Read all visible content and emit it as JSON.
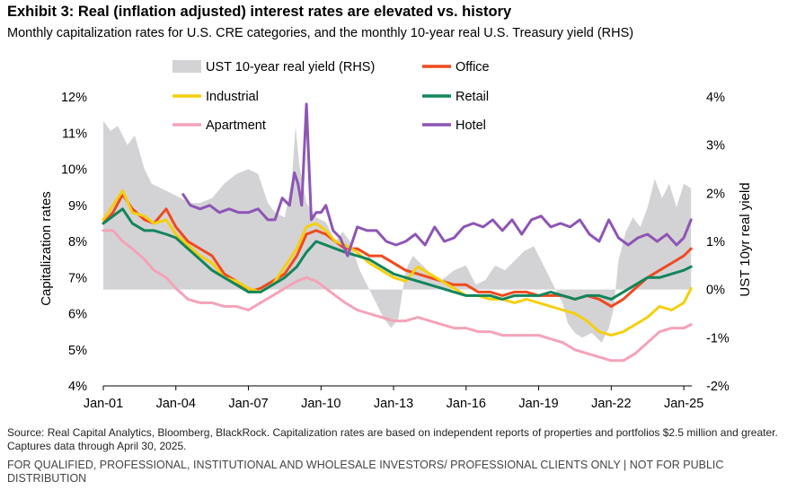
{
  "title": "Exhibit 3: Real (inflation adjusted) interest rates are elevated vs. history",
  "subtitle": "Monthly capitalization rates for U.S. CRE categories, and the monthly 10-year real U.S. Treasury yield (RHS)",
  "footnote_source": "Source: Real Capital Analytics, Bloomberg, BlackRock. Capitalization rates are based on independent reports of properties and portfolios $2.5 million and greater. Captures data through April 30, 2025.",
  "footnote_disclaimer": "FOR QUALIFIED, PROFESSIONAL, INSTITUTIONAL AND WHOLESALE INVESTORS/ PROFESSIONAL CLIENTS ONLY | NOT FOR PUBLIC DISTRIBUTION",
  "colors": {
    "ust": "#d3d3d6",
    "office": "#ef4a1f",
    "industrial": "#f5cf0e",
    "retail": "#12855a",
    "apartment": "#f4a3b8",
    "hotel": "#8e55b5"
  },
  "chart_data": {
    "type": "line",
    "title": "Exhibit 3: Real (inflation adjusted) interest rates are elevated vs. history",
    "xlabel": "",
    "ylabel": "Capitalization rates",
    "y2label": "UST 10yr real yield",
    "xlim": [
      2001.0,
      2025.33
    ],
    "ylim": [
      4,
      12
    ],
    "y2lim": [
      -2,
      4
    ],
    "x_ticks": [
      2001,
      2004,
      2007,
      2010,
      2013,
      2016,
      2019,
      2022,
      2025
    ],
    "x_tick_labels": [
      "Jan-01",
      "Jan-04",
      "Jan-07",
      "Jan-10",
      "Jan-13",
      "Jan-16",
      "Jan-19",
      "Jan-22",
      "Jan-25"
    ],
    "y_tick_labels": [
      "4%",
      "5%",
      "6%",
      "7%",
      "8%",
      "9%",
      "10%",
      "11%",
      "12%"
    ],
    "y2_tick_labels": [
      "-2%",
      "-1%",
      "0%",
      "1%",
      "2%",
      "3%",
      "4%"
    ],
    "legend": [
      {
        "key": "ust",
        "label": "UST 10-year real yield (RHS)",
        "style": "area"
      },
      {
        "key": "office",
        "label": "Office",
        "style": "line"
      },
      {
        "key": "industrial",
        "label": "Industrial",
        "style": "line"
      },
      {
        "key": "retail",
        "label": "Retail",
        "style": "line"
      },
      {
        "key": "apartment",
        "label": "Apartment",
        "style": "line"
      },
      {
        "key": "hotel",
        "label": "Hotel",
        "style": "line"
      }
    ],
    "ust_area": {
      "name": "UST 10-year real yield (RHS)",
      "axis": "right",
      "x": [
        2001.0,
        2001.3,
        2001.6,
        2002.0,
        2002.3,
        2002.7,
        2003.0,
        2003.4,
        2003.8,
        2004.2,
        2004.6,
        2005.0,
        2005.5,
        2006.0,
        2006.5,
        2007.0,
        2007.4,
        2007.8,
        2008.1,
        2008.5,
        2008.8,
        2008.95,
        2009.1,
        2009.4,
        2009.8,
        2010.2,
        2010.6,
        2010.9,
        2011.2,
        2011.6,
        2011.9,
        2012.2,
        2012.6,
        2012.9,
        2013.2,
        2013.5,
        2013.8,
        2014.2,
        2014.6,
        2015.0,
        2015.5,
        2016.0,
        2016.4,
        2016.8,
        2017.2,
        2017.6,
        2018.0,
        2018.4,
        2018.8,
        2019.2,
        2019.6,
        2020.0,
        2020.2,
        2020.5,
        2020.8,
        2021.2,
        2021.6,
        2021.9,
        2022.1,
        2022.3,
        2022.6,
        2022.9,
        2023.2,
        2023.5,
        2023.8,
        2024.1,
        2024.4,
        2024.7,
        2025.0,
        2025.3
      ],
      "values": [
        3.5,
        3.3,
        3.4,
        3.0,
        3.2,
        2.5,
        2.2,
        2.1,
        2.0,
        1.9,
        1.8,
        1.8,
        1.9,
        2.2,
        2.4,
        2.5,
        2.4,
        1.8,
        1.6,
        1.5,
        2.3,
        3.4,
        2.6,
        1.8,
        1.5,
        1.4,
        1.0,
        1.2,
        1.0,
        0.4,
        0.1,
        -0.2,
        -0.6,
        -0.8,
        -0.6,
        0.4,
        0.7,
        0.5,
        0.3,
        0.2,
        0.4,
        0.5,
        0.1,
        0.2,
        0.5,
        0.4,
        0.6,
        0.8,
        0.9,
        0.5,
        0.1,
        -0.3,
        -0.7,
        -0.9,
        -1.0,
        -0.9,
        -1.1,
        -0.8,
        -0.4,
        0.6,
        1.2,
        1.5,
        1.3,
        1.7,
        2.3,
        1.9,
        2.2,
        1.7,
        2.2,
        2.1
      ]
    },
    "series": [
      {
        "key": "office",
        "name": "Office",
        "x": [
          2001.0,
          2001.4,
          2001.8,
          2002.2,
          2002.7,
          2003.1,
          2003.6,
          2004.0,
          2004.5,
          2005.0,
          2005.5,
          2006.0,
          2006.5,
          2007.0,
          2007.5,
          2008.0,
          2008.5,
          2009.0,
          2009.4,
          2009.8,
          2010.2,
          2010.6,
          2011.0,
          2011.5,
          2012.0,
          2012.5,
          2013.0,
          2013.5,
          2014.0,
          2014.5,
          2015.0,
          2015.5,
          2016.0,
          2016.5,
          2017.0,
          2017.5,
          2018.0,
          2018.5,
          2019.0,
          2019.5,
          2020.0,
          2020.5,
          2021.0,
          2021.5,
          2022.0,
          2022.5,
          2023.0,
          2023.5,
          2024.0,
          2024.5,
          2025.0,
          2025.3
        ],
        "values": [
          8.5,
          8.8,
          9.3,
          8.9,
          8.6,
          8.5,
          8.9,
          8.4,
          8.0,
          7.8,
          7.6,
          7.1,
          6.9,
          6.6,
          6.7,
          6.9,
          7.1,
          7.6,
          8.2,
          8.3,
          8.2,
          8.0,
          7.8,
          7.8,
          7.6,
          7.6,
          7.4,
          7.2,
          7.1,
          7.0,
          6.9,
          6.8,
          6.8,
          6.6,
          6.6,
          6.5,
          6.6,
          6.6,
          6.5,
          6.5,
          6.5,
          6.4,
          6.5,
          6.4,
          6.2,
          6.4,
          6.7,
          7.0,
          7.2,
          7.4,
          7.6,
          7.8
        ]
      },
      {
        "key": "industrial",
        "name": "Industrial",
        "x": [
          2001.0,
          2001.4,
          2001.8,
          2002.2,
          2002.7,
          2003.1,
          2003.6,
          2004.0,
          2004.5,
          2005.0,
          2005.5,
          2006.0,
          2006.5,
          2007.0,
          2007.5,
          2008.0,
          2008.5,
          2009.0,
          2009.4,
          2009.8,
          2010.2,
          2010.6,
          2011.0,
          2011.5,
          2012.0,
          2012.5,
          2013.0,
          2013.5,
          2014.0,
          2014.5,
          2015.0,
          2015.5,
          2016.0,
          2016.5,
          2017.0,
          2017.5,
          2018.0,
          2018.5,
          2019.0,
          2019.5,
          2020.0,
          2020.5,
          2021.0,
          2021.5,
          2022.0,
          2022.5,
          2023.0,
          2023.5,
          2024.0,
          2024.5,
          2025.0,
          2025.3
        ],
        "values": [
          8.6,
          9.0,
          9.4,
          8.8,
          8.7,
          8.5,
          8.6,
          8.2,
          7.9,
          7.6,
          7.4,
          7.0,
          6.9,
          6.7,
          6.6,
          6.8,
          7.3,
          7.8,
          8.4,
          8.5,
          8.3,
          8.0,
          7.9,
          7.7,
          7.4,
          7.2,
          7.0,
          6.9,
          7.3,
          7.1,
          6.9,
          6.7,
          6.5,
          6.5,
          6.4,
          6.4,
          6.3,
          6.4,
          6.3,
          6.2,
          6.1,
          6.0,
          5.8,
          5.5,
          5.4,
          5.5,
          5.7,
          5.9,
          6.2,
          6.1,
          6.3,
          6.7
        ]
      },
      {
        "key": "retail",
        "name": "Retail",
        "x": [
          2001.0,
          2001.4,
          2001.8,
          2002.2,
          2002.7,
          2003.1,
          2003.6,
          2004.0,
          2004.5,
          2005.0,
          2005.5,
          2006.0,
          2006.5,
          2007.0,
          2007.5,
          2008.0,
          2008.5,
          2009.0,
          2009.4,
          2009.8,
          2010.2,
          2010.6,
          2011.0,
          2011.5,
          2012.0,
          2012.5,
          2013.0,
          2013.5,
          2014.0,
          2014.5,
          2015.0,
          2015.5,
          2016.0,
          2016.5,
          2017.0,
          2017.5,
          2018.0,
          2018.5,
          2019.0,
          2019.5,
          2020.0,
          2020.5,
          2021.0,
          2021.5,
          2022.0,
          2022.5,
          2023.0,
          2023.5,
          2024.0,
          2024.5,
          2025.0,
          2025.3
        ],
        "values": [
          8.5,
          8.7,
          8.9,
          8.5,
          8.3,
          8.3,
          8.2,
          8.1,
          7.8,
          7.5,
          7.2,
          7.0,
          6.8,
          6.6,
          6.6,
          6.8,
          7.0,
          7.3,
          7.7,
          8.0,
          7.9,
          7.8,
          7.7,
          7.6,
          7.5,
          7.3,
          7.1,
          7.0,
          6.9,
          6.8,
          6.7,
          6.6,
          6.5,
          6.5,
          6.5,
          6.4,
          6.5,
          6.5,
          6.5,
          6.6,
          6.5,
          6.4,
          6.5,
          6.5,
          6.4,
          6.6,
          6.8,
          7.0,
          7.0,
          7.1,
          7.2,
          7.3
        ]
      },
      {
        "key": "apartment",
        "name": "Apartment",
        "x": [
          2001.0,
          2001.4,
          2001.8,
          2002.2,
          2002.7,
          2003.1,
          2003.6,
          2004.0,
          2004.5,
          2005.0,
          2005.5,
          2006.0,
          2006.5,
          2007.0,
          2007.5,
          2008.0,
          2008.5,
          2009.0,
          2009.4,
          2009.8,
          2010.2,
          2010.6,
          2011.0,
          2011.5,
          2012.0,
          2012.5,
          2013.0,
          2013.5,
          2014.0,
          2014.5,
          2015.0,
          2015.5,
          2016.0,
          2016.5,
          2017.0,
          2017.5,
          2018.0,
          2018.5,
          2019.0,
          2019.5,
          2020.0,
          2020.5,
          2021.0,
          2021.5,
          2022.0,
          2022.5,
          2023.0,
          2023.5,
          2024.0,
          2024.5,
          2025.0,
          2025.3
        ],
        "values": [
          8.3,
          8.3,
          8.0,
          7.8,
          7.5,
          7.2,
          7.0,
          6.7,
          6.4,
          6.3,
          6.3,
          6.2,
          6.2,
          6.1,
          6.3,
          6.5,
          6.7,
          6.9,
          7.0,
          6.9,
          6.7,
          6.5,
          6.3,
          6.1,
          6.0,
          5.9,
          5.8,
          5.8,
          5.9,
          5.8,
          5.7,
          5.6,
          5.6,
          5.5,
          5.5,
          5.4,
          5.4,
          5.4,
          5.4,
          5.3,
          5.2,
          5.0,
          4.9,
          4.8,
          4.7,
          4.7,
          4.9,
          5.2,
          5.5,
          5.6,
          5.6,
          5.7
        ]
      },
      {
        "key": "hotel",
        "name": "Hotel",
        "x": [
          2004.3,
          2004.6,
          2005.0,
          2005.4,
          2005.8,
          2006.2,
          2006.6,
          2007.0,
          2007.4,
          2007.8,
          2008.1,
          2008.4,
          2008.7,
          2008.9,
          2009.05,
          2009.2,
          2009.4,
          2009.6,
          2009.8,
          2010.0,
          2010.2,
          2010.5,
          2010.8,
          2011.1,
          2011.5,
          2011.9,
          2012.3,
          2012.7,
          2013.1,
          2013.5,
          2013.9,
          2014.3,
          2014.7,
          2015.1,
          2015.5,
          2015.9,
          2016.3,
          2016.7,
          2017.1,
          2017.5,
          2017.9,
          2018.3,
          2018.7,
          2019.1,
          2019.5,
          2019.9,
          2020.3,
          2020.7,
          2021.1,
          2021.5,
          2021.9,
          2022.3,
          2022.7,
          2023.1,
          2023.5,
          2023.9,
          2024.3,
          2024.7,
          2025.0,
          2025.3
        ],
        "values": [
          9.3,
          9.0,
          8.9,
          9.0,
          8.8,
          8.9,
          8.8,
          8.8,
          8.9,
          8.6,
          8.6,
          9.2,
          9.0,
          9.9,
          9.6,
          9.0,
          11.8,
          8.6,
          8.8,
          8.8,
          9.0,
          8.3,
          8.1,
          7.6,
          8.4,
          8.3,
          8.3,
          8.0,
          7.9,
          8.0,
          8.2,
          7.9,
          8.4,
          8.0,
          8.1,
          8.4,
          8.5,
          8.4,
          8.6,
          8.3,
          8.6,
          8.2,
          8.6,
          8.7,
          8.4,
          8.5,
          8.4,
          8.6,
          8.2,
          8.0,
          8.6,
          8.1,
          7.9,
          8.1,
          8.2,
          8.0,
          8.2,
          7.9,
          8.1,
          8.6
        ]
      }
    ]
  }
}
